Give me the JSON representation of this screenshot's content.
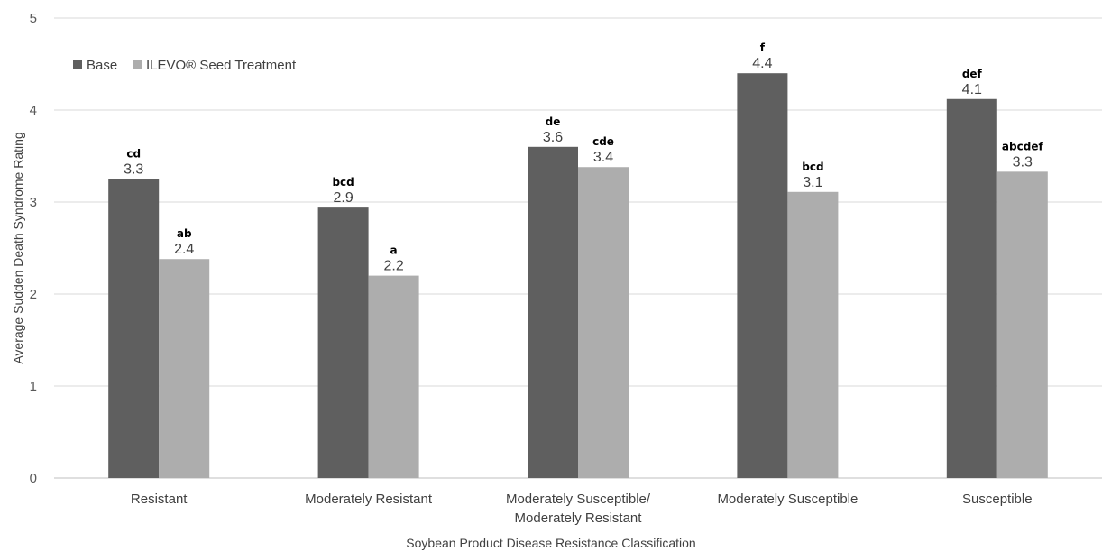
{
  "chart_data": {
    "type": "bar",
    "title": "",
    "xlabel": "Soybean Product Disease Resistance Classification",
    "ylabel": "Average Sudden Death Syndrome Rating",
    "ylim": [
      0,
      5
    ],
    "yticks": [
      "0",
      "1",
      "2",
      "3",
      "4",
      "5"
    ],
    "grid": true,
    "legend_position": "top-left",
    "categories": [
      [
        "Resistant"
      ],
      [
        "Moderately Resistant"
      ],
      [
        "Moderately Susceptible/",
        "Moderately Resistant"
      ],
      [
        "Moderately Susceptible"
      ],
      [
        "Susceptible"
      ]
    ],
    "series": [
      {
        "name": "Base",
        "color": "#5f5f5f",
        "values": [
          3.25,
          2.94,
          3.6,
          4.4,
          4.12
        ],
        "value_labels": [
          "3.3",
          "2.9",
          "3.6",
          "4.4",
          "4.1"
        ],
        "letters": [
          "cd",
          "bcd",
          "de",
          "f",
          "def"
        ]
      },
      {
        "name": "ILEVO® Seed Treatment",
        "color": "#adadad",
        "values": [
          2.38,
          2.2,
          3.38,
          3.11,
          3.33
        ],
        "value_labels": [
          "2.4",
          "2.2",
          "3.4",
          "3.1",
          "3.3"
        ],
        "letters": [
          "ab",
          "a",
          "cde",
          "bcd",
          "abcdef"
        ]
      }
    ]
  }
}
